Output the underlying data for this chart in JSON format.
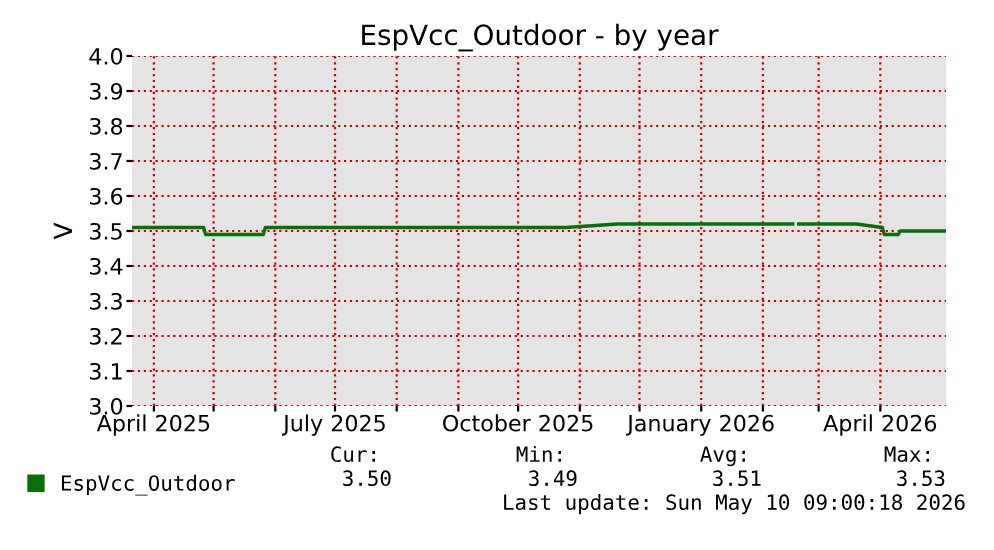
{
  "chart_data": {
    "type": "line",
    "title": "EspVcc_Outdoor - by year",
    "ylabel": "V",
    "x": [
      "2025-03-21",
      "2025-04-26",
      "2025-04-27",
      "2025-05-26",
      "2025-05-27",
      "2025-06-20",
      "2025-07-15",
      "2025-08-10",
      "2025-09-05",
      "2025-10-01",
      "2025-10-25",
      "2025-11-20",
      "2025-12-15",
      "2026-01-10",
      "2026-02-05",
      "2026-02-16",
      "2026-02-17",
      "2026-02-19",
      "2026-03-20",
      "2026-04-02",
      "2026-04-03",
      "2026-04-10",
      "2026-04-11",
      "2026-04-20",
      "2026-05-04"
    ],
    "series": [
      {
        "name": "EspVcc_Outdoor",
        "color": "#0a6e0a",
        "values": [
          3.51,
          3.51,
          3.49,
          3.49,
          3.51,
          3.51,
          3.51,
          3.51,
          3.51,
          3.51,
          3.51,
          3.52,
          3.52,
          3.52,
          3.52,
          3.52,
          null,
          3.52,
          3.52,
          3.51,
          3.49,
          3.49,
          3.5,
          3.5,
          3.5
        ]
      }
    ],
    "xlim": [
      "2025-03-21",
      "2026-05-04"
    ],
    "xticks": [
      {
        "value": "2025-04-01",
        "label": "April 2025"
      },
      {
        "value": "2025-05-01",
        "label": null
      },
      {
        "value": "2025-06-01",
        "label": null
      },
      {
        "value": "2025-07-01",
        "label": "July 2025"
      },
      {
        "value": "2025-08-01",
        "label": null
      },
      {
        "value": "2025-09-01",
        "label": null
      },
      {
        "value": "2025-10-01",
        "label": "October 2025"
      },
      {
        "value": "2025-11-01",
        "label": null
      },
      {
        "value": "2025-12-01",
        "label": null
      },
      {
        "value": "2026-01-01",
        "label": "January 2026"
      },
      {
        "value": "2026-02-01",
        "label": null
      },
      {
        "value": "2026-03-01",
        "label": null
      },
      {
        "value": "2026-04-01",
        "label": "April 2026"
      }
    ],
    "ylim": [
      3.0,
      4.0
    ],
    "yticks": [
      {
        "value": 3.0,
        "label": "3.0"
      },
      3.1,
      3.2,
      3.3,
      3.4,
      {
        "value": 3.5,
        "label": "3.5"
      },
      3.6,
      3.7,
      3.8,
      3.9,
      {
        "value": 4.0,
        "label": "4.0"
      }
    ],
    "grid": true,
    "legend": "bottom left",
    "line_style": "solid",
    "annotations": [
      "Cur:",
      "Min:",
      "Avg:",
      "Max:",
      "3.50",
      "3.49",
      "3.51",
      "3.53",
      "Last update: Sun May 10 09:00:18 2026"
    ]
  }
}
